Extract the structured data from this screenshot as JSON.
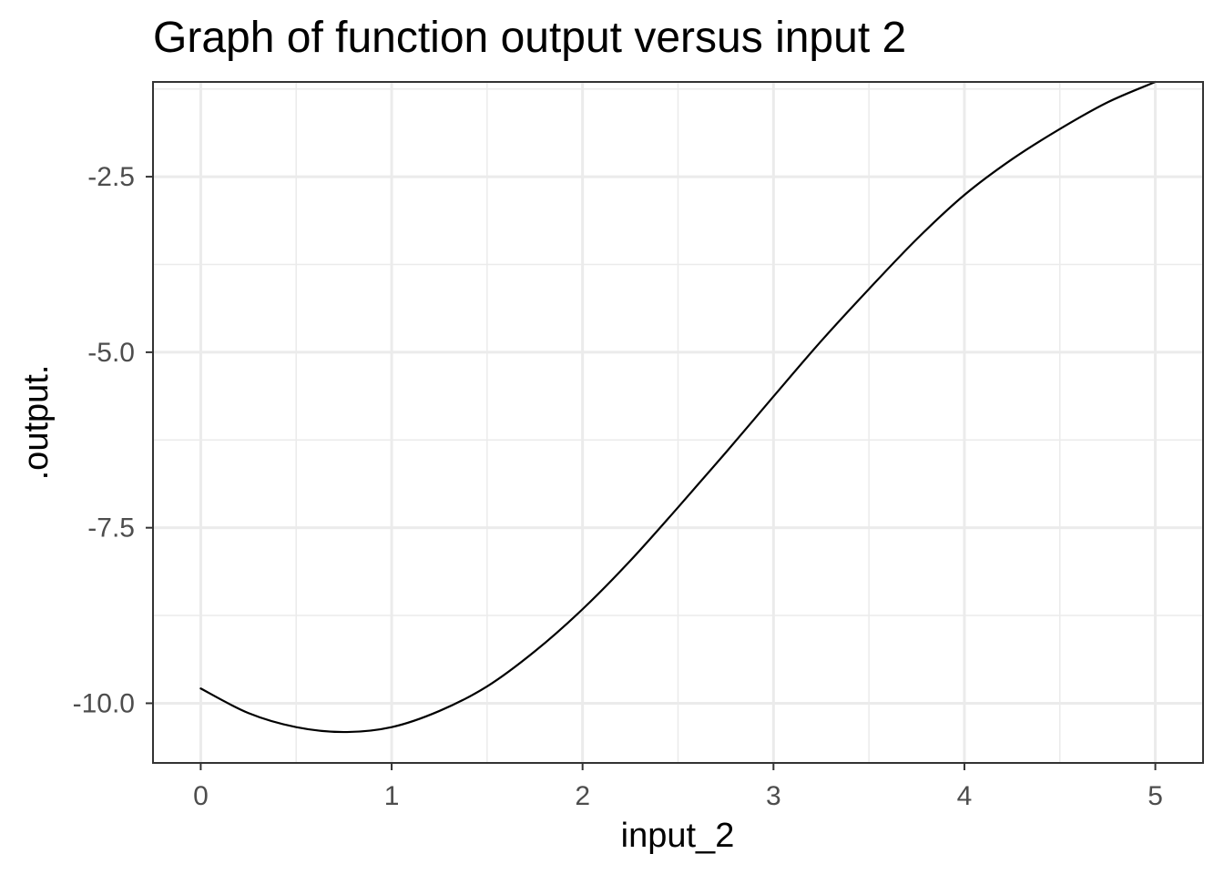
{
  "chart_data": {
    "type": "line",
    "title": "Graph of function output versus input 2",
    "xlabel": "input_2",
    "ylabel": ".output.",
    "xlim": [
      -0.25,
      5.25
    ],
    "ylim": [
      -10.85,
      -1.15
    ],
    "x_ticks": [
      0,
      1,
      2,
      3,
      4,
      5
    ],
    "x_tick_labels": [
      "0",
      "1",
      "2",
      "3",
      "4",
      "5"
    ],
    "y_ticks": [
      -10.0,
      -7.5,
      -5.0,
      -2.5
    ],
    "y_tick_labels": [
      "-10.0",
      "-7.5",
      "-5.0",
      "-2.5"
    ],
    "x_minor_ticks": [
      0.5,
      1.5,
      2.5,
      3.5,
      4.5
    ],
    "y_minor_ticks": [
      -8.75,
      -6.25,
      -3.75,
      -1.25
    ],
    "grid": true,
    "legend": "none",
    "series": [
      {
        "color": "#000000",
        "x": [
          0,
          0.25,
          0.5,
          0.75,
          1.0,
          1.25,
          1.5,
          1.75,
          2.0,
          2.25,
          2.5,
          2.75,
          3.0,
          3.25,
          3.5,
          3.75,
          4.0,
          4.25,
          4.5,
          4.75,
          5.0
        ],
        "y": [
          -9.79,
          -10.14,
          -10.34,
          -10.41,
          -10.34,
          -10.11,
          -9.76,
          -9.26,
          -8.66,
          -7.97,
          -7.21,
          -6.43,
          -5.63,
          -4.84,
          -4.1,
          -3.39,
          -2.76,
          -2.25,
          -1.82,
          -1.44,
          -1.15
        ]
      }
    ]
  }
}
